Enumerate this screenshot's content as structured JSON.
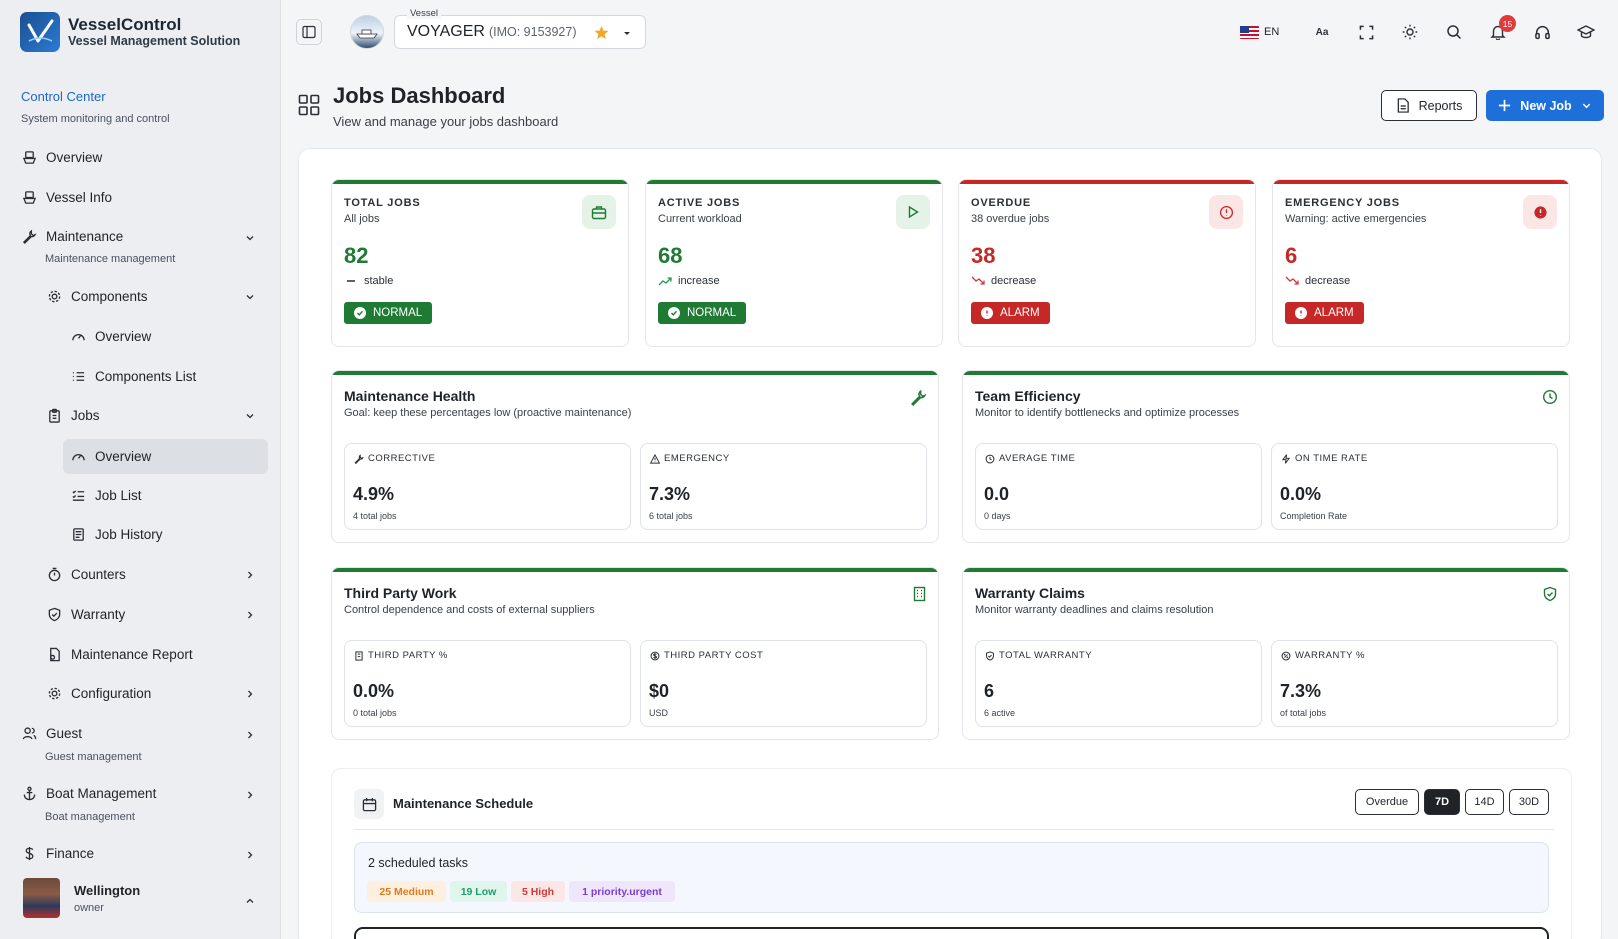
{
  "brand": {
    "name": "VesselControl",
    "subtitle": "Vessel Management Solution"
  },
  "sidebar": {
    "section_title": "Control Center",
    "section_sub": "System monitoring and control",
    "items": {
      "overview": "Overview",
      "vessel_info": "Vessel Info",
      "maintenance": "Maintenance",
      "maintenance_sub": "Maintenance management",
      "components": "Components",
      "components_overview": "Overview",
      "components_list": "Components List",
      "jobs": "Jobs",
      "jobs_overview": "Overview",
      "job_list": "Job List",
      "job_history": "Job History",
      "counters": "Counters",
      "warranty": "Warranty",
      "maintenance_report": "Maintenance Report",
      "configuration": "Configuration",
      "guest": "Guest",
      "guest_sub": "Guest management",
      "boat_management": "Boat Management",
      "boat_management_sub": "Boat management",
      "finance": "Finance"
    },
    "user": {
      "name": "Wellington",
      "role": "owner"
    }
  },
  "topbar": {
    "vessel_label": "Vessel",
    "vessel_name": "VOYAGER",
    "vessel_imo": "(IMO: 9153927)",
    "language": "EN",
    "notifications": "15",
    "icons": [
      "sidebar-toggle-icon",
      "flag-us-icon",
      "font-size-icon",
      "fullscreen-icon",
      "sun-icon",
      "search-icon",
      "bell-icon",
      "headset-icon",
      "graduation-cap-icon"
    ]
  },
  "header": {
    "title": "Jobs Dashboard",
    "subtitle": "View and manage your jobs dashboard",
    "reports_label": "Reports",
    "new_job_label": "New Job"
  },
  "kpis": [
    {
      "label": "TOTAL JOBS",
      "sub": "All jobs",
      "value": "82",
      "trend": "stable",
      "status": "NORMAL",
      "color": "#1f7a34"
    },
    {
      "label": "ACTIVE JOBS",
      "sub": "Current workload",
      "value": "68",
      "trend": "increase",
      "status": "NORMAL",
      "color": "#1f7a34"
    },
    {
      "label": "OVERDUE",
      "sub": "38 overdue jobs",
      "value": "38",
      "trend": "decrease",
      "status": "ALARM",
      "color": "#c62828"
    },
    {
      "label": "EMERGENCY JOBS",
      "sub": "Warning: active emergencies",
      "value": "6",
      "trend": "decrease",
      "status": "ALARM",
      "color": "#c62828"
    }
  ],
  "cards": {
    "health": {
      "title": "Maintenance Health",
      "sub": "Goal: keep these percentages low (proactive maintenance)",
      "m1": {
        "label": "CORRECTIVE",
        "value": "4.9%",
        "sub": "4 total jobs"
      },
      "m2": {
        "label": "EMERGENCY",
        "value": "7.3%",
        "sub": "6 total jobs"
      }
    },
    "efficiency": {
      "title": "Team Efficiency",
      "sub": "Monitor to identify bottlenecks and optimize processes",
      "m1": {
        "label": "AVERAGE TIME",
        "value": "0.0",
        "sub": "0 days"
      },
      "m2": {
        "label": "ON TIME RATE",
        "value": "0.0%",
        "sub": "Completion Rate"
      }
    },
    "third_party": {
      "title": "Third Party Work",
      "sub": "Control dependence and costs of external suppliers",
      "m1": {
        "label": "THIRD PARTY %",
        "value": "0.0%",
        "sub": "0 total jobs"
      },
      "m2": {
        "label": "THIRD PARTY COST",
        "value": "$0",
        "sub": "USD"
      }
    },
    "warranty": {
      "title": "Warranty Claims",
      "sub": "Monitor warranty deadlines and claims resolution",
      "m1": {
        "label": "TOTAL WARRANTY",
        "value": "6",
        "sub": "6 active"
      },
      "m2": {
        "label": "WARRANTY %",
        "value": "7.3%",
        "sub": "of total jobs"
      }
    }
  },
  "schedule": {
    "title": "Maintenance Schedule",
    "filters": [
      "Overdue",
      "7D",
      "14D",
      "30D"
    ],
    "active_filter": "7D",
    "count_text": "2 scheduled tasks",
    "pills": [
      {
        "label": "25 Medium",
        "color": "#e07b1a",
        "bg": "#fdf0e0"
      },
      {
        "label": "19 Low",
        "color": "#1f9d6b",
        "bg": "#e0f5ec"
      },
      {
        "label": "5 High",
        "color": "#d03a3a",
        "bg": "#fce6e6"
      },
      {
        "label": "1 priority.urgent",
        "color": "#7a3fc9",
        "bg": "#efe6fb"
      }
    ]
  }
}
